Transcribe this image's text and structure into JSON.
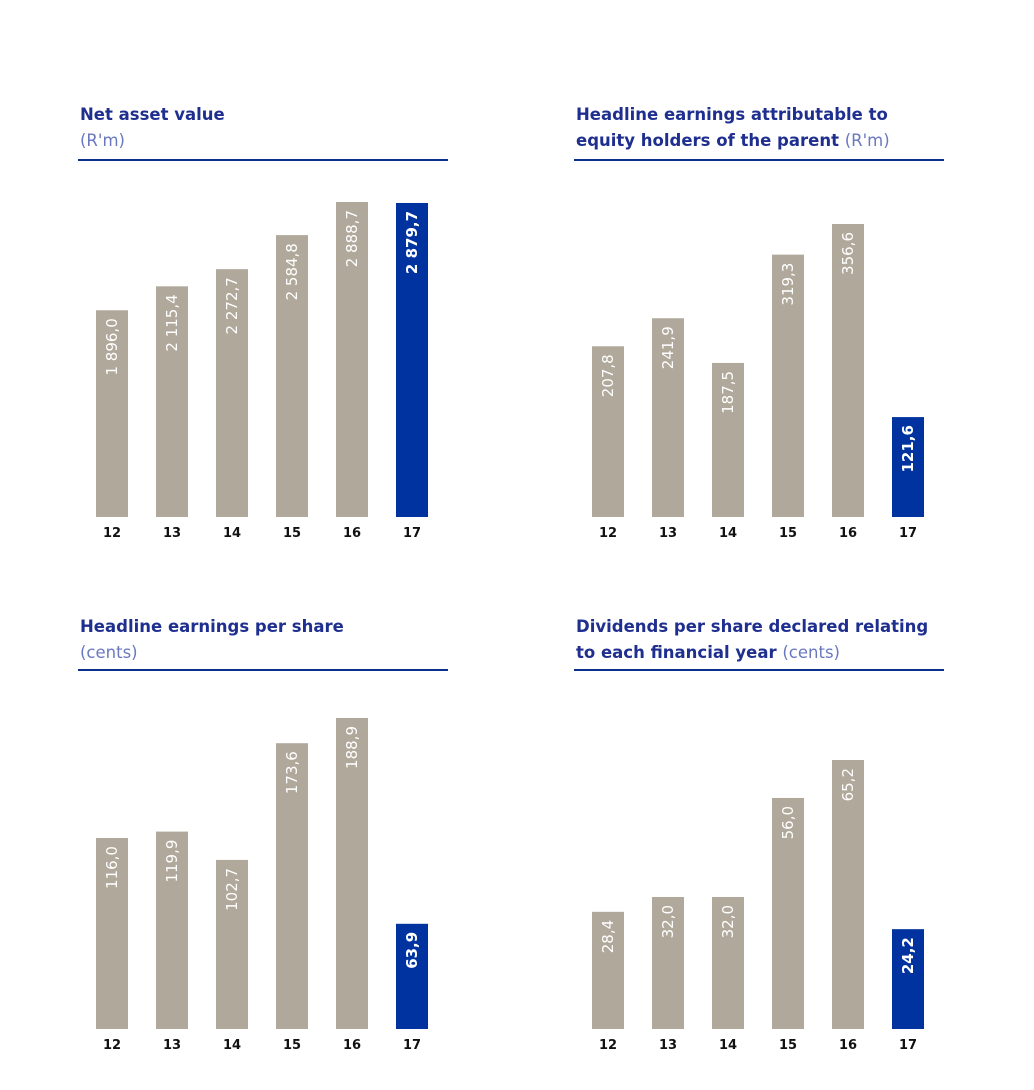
{
  "colors": {
    "bar": "#b0a89b",
    "highlight": "#0033a0",
    "title": "#1f2f8f",
    "rule": "#0b2f8c"
  },
  "chart_data": [
    {
      "type": "bar",
      "title": "Net asset value",
      "unit": "(R'm)",
      "categories": [
        "12",
        "13",
        "14",
        "15",
        "16",
        "17"
      ],
      "values": [
        1896.0,
        2115.4,
        2272.7,
        2584.8,
        2888.7,
        2879.7
      ],
      "labels": [
        "1 896,0",
        "2 115,4",
        "2 272,7",
        "2 584,8",
        "2 888,7",
        "2 879,7"
      ],
      "highlight_index": 5,
      "xlabel": "",
      "ylabel": "",
      "ylim": [
        0,
        2888.7
      ]
    },
    {
      "type": "bar",
      "title": "Headline earnings attributable to equity holders of the parent",
      "unit": "(R'm)",
      "categories": [
        "12",
        "13",
        "14",
        "15",
        "16",
        "17"
      ],
      "values": [
        207.8,
        241.9,
        187.5,
        319.3,
        356.6,
        121.6
      ],
      "labels": [
        "207,8",
        "241,9",
        "187,5",
        "319,3",
        "356,6",
        "121,6"
      ],
      "highlight_index": 5,
      "xlabel": "",
      "ylabel": "",
      "ylim": [
        0,
        356.6
      ]
    },
    {
      "type": "bar",
      "title": "Headline earnings per share",
      "unit": "(cents)",
      "categories": [
        "12",
        "13",
        "14",
        "15",
        "16",
        "17"
      ],
      "values": [
        116.0,
        119.9,
        102.7,
        173.6,
        188.9,
        63.9
      ],
      "labels": [
        "116,0",
        "119,9",
        "102,7",
        "173,6",
        "188,9",
        "63,9"
      ],
      "highlight_index": 5,
      "xlabel": "",
      "ylabel": "",
      "ylim": [
        0,
        188.9
      ]
    },
    {
      "type": "bar",
      "title": "Dividends per share declared relating to each financial year",
      "unit": "(cents)",
      "categories": [
        "12",
        "13",
        "14",
        "15",
        "16",
        "17"
      ],
      "values": [
        28.4,
        32.0,
        32.0,
        56.0,
        65.2,
        24.2
      ],
      "labels": [
        "28,4",
        "32,0",
        "32,0",
        "56,0",
        "65,2",
        "24,2"
      ],
      "highlight_index": 5,
      "xlabel": "",
      "ylabel": "",
      "ylim": [
        0,
        65.2
      ]
    }
  ]
}
